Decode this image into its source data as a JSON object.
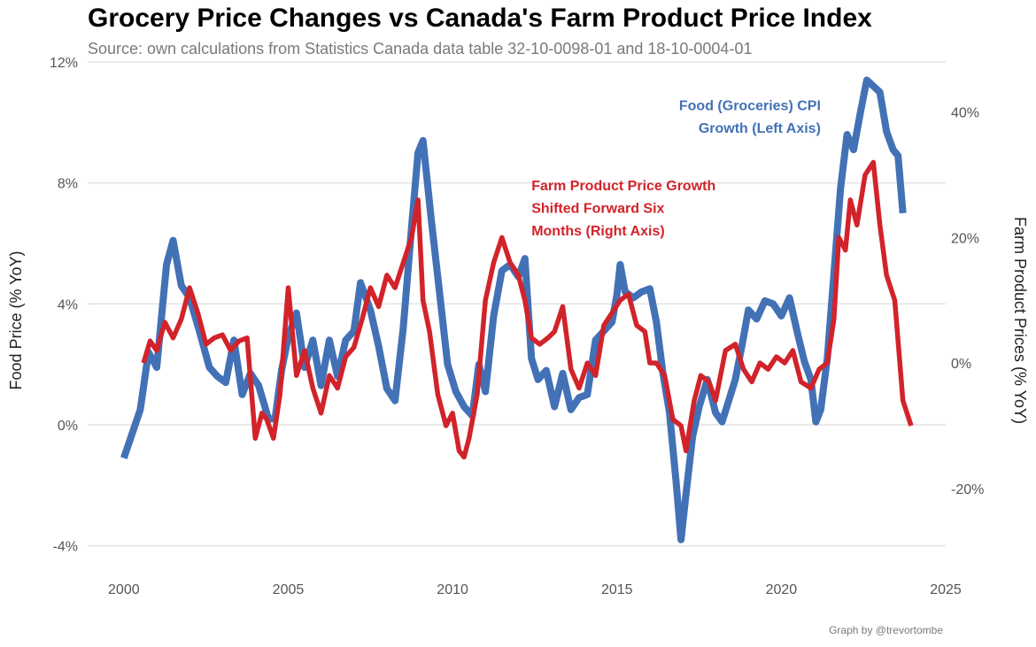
{
  "header": {
    "title": "Grocery Price Changes vs Canada's Farm Product Price Index",
    "subtitle": "Source: own calculations from Statistics Canada data table 32-10-0098-01 and 18-10-0004-01"
  },
  "footer": {
    "caption": "Graph by @trevortombe"
  },
  "chart_data": {
    "type": "line",
    "title": "Grocery Price Changes vs Canada's Farm Product Price Index",
    "subtitle": "Source: own calculations from Statistics Canada data table 32-10-0098-01 and 18-10-0004-01",
    "ylabel": "Food Price (% YoY)",
    "y2label": "Farm Product Prices (% YoY)",
    "xlim": [
      1998.9,
      2025
    ],
    "ylim": [
      -4.8,
      12
    ],
    "y2lim": [
      -33,
      48
    ],
    "x_ticks": [
      2000,
      2005,
      2010,
      2015,
      2020,
      2025
    ],
    "y_ticks": [
      -4,
      0,
      4,
      8,
      12
    ],
    "y_tick_labels": [
      "-4%",
      "0%",
      "4%",
      "8%",
      "12%"
    ],
    "y2_ticks": [
      -20,
      0,
      20,
      40
    ],
    "y2_tick_labels": [
      "-20%",
      "0%",
      "20%",
      "40%"
    ],
    "grid": true,
    "annotations": [
      {
        "lines": [
          "Food (Groceries) CPI",
          "Growth (Left Axis)"
        ],
        "color": "#4271b6",
        "x": 2021.2,
        "y": 10.4,
        "align": "end"
      },
      {
        "lines": [
          "Farm Product Price Growth",
          "Shifted Forward Six",
          "Months (Right Axis)"
        ],
        "color": "#d2232a",
        "x": 2012.4,
        "y": 7.75,
        "align": "start"
      }
    ],
    "series": [
      {
        "name": "Food (Groceries) CPI Growth (Left Axis)",
        "axis": "left",
        "color": "#4271b6",
        "x": [
          2000.0,
          2000.25,
          2000.5,
          2000.75,
          2001.0,
          2001.15,
          2001.3,
          2001.5,
          2001.75,
          2002.0,
          2002.3,
          2002.6,
          2002.85,
          2003.1,
          2003.35,
          2003.6,
          2003.85,
          2004.1,
          2004.4,
          2004.6,
          2004.8,
          2005.0,
          2005.25,
          2005.5,
          2005.75,
          2006.0,
          2006.25,
          2006.5,
          2006.75,
          2007.0,
          2007.2,
          2007.5,
          2007.75,
          2008.0,
          2008.25,
          2008.5,
          2008.75,
          2008.95,
          2009.1,
          2009.35,
          2009.6,
          2009.85,
          2010.1,
          2010.35,
          2010.6,
          2010.8,
          2011.0,
          2011.25,
          2011.5,
          2011.75,
          2012.0,
          2012.2,
          2012.4,
          2012.6,
          2012.85,
          2013.1,
          2013.35,
          2013.6,
          2013.85,
          2014.1,
          2014.35,
          2014.6,
          2014.85,
          2015.0,
          2015.1,
          2015.25,
          2015.5,
          2015.75,
          2016.0,
          2016.2,
          2016.4,
          2016.6,
          2016.8,
          2016.95,
          2017.1,
          2017.3,
          2017.5,
          2017.75,
          2018.0,
          2018.2,
          2018.4,
          2018.6,
          2018.8,
          2019.0,
          2019.25,
          2019.5,
          2019.75,
          2020.0,
          2020.25,
          2020.5,
          2020.7,
          2020.9,
          2021.05,
          2021.2,
          2021.4,
          2021.6,
          2021.8,
          2022.0,
          2022.2,
          2022.4,
          2022.6,
          2022.8,
          2023.0,
          2023.2,
          2023.4,
          2023.55,
          2023.7
        ],
        "values": [
          -1.1,
          -0.3,
          0.5,
          2.4,
          1.9,
          3.6,
          5.3,
          6.1,
          4.6,
          4.2,
          3.1,
          1.9,
          1.6,
          1.4,
          2.8,
          1.0,
          1.7,
          1.3,
          0.2,
          0.2,
          1.8,
          2.9,
          3.7,
          1.9,
          2.8,
          1.3,
          2.8,
          1.6,
          2.8,
          3.1,
          4.7,
          3.8,
          2.6,
          1.2,
          0.8,
          3.2,
          6.5,
          9.0,
          9.4,
          6.8,
          4.4,
          2.0,
          1.1,
          0.6,
          0.3,
          2.0,
          1.1,
          3.6,
          5.1,
          5.3,
          4.9,
          5.5,
          2.2,
          1.5,
          1.8,
          0.6,
          1.7,
          0.5,
          0.9,
          1.0,
          2.8,
          3.1,
          3.4,
          4.3,
          5.3,
          4.4,
          4.2,
          4.4,
          4.5,
          3.4,
          1.7,
          0.4,
          -1.9,
          -3.8,
          -2.3,
          -0.4,
          0.6,
          1.5,
          0.4,
          0.1,
          0.8,
          1.5,
          2.6,
          3.8,
          3.5,
          4.1,
          4.0,
          3.6,
          4.2,
          3.0,
          2.1,
          1.5,
          0.1,
          0.5,
          2.2,
          5.0,
          7.8,
          9.6,
          9.1,
          10.3,
          11.4,
          11.2,
          11.0,
          9.7,
          9.1,
          8.9,
          7.0
        ]
      },
      {
        "name": "Farm Product Price Growth Shifted Forward Six Months (Right Axis)",
        "axis": "right",
        "color": "#d2232a",
        "x": [
          2000.6,
          2000.8,
          2001.0,
          2001.25,
          2001.5,
          2001.75,
          2002.0,
          2002.25,
          2002.5,
          2002.75,
          2003.0,
          2003.25,
          2003.5,
          2003.75,
          2004.0,
          2004.2,
          2004.35,
          2004.55,
          2004.75,
          2005.0,
          2005.25,
          2005.5,
          2005.75,
          2006.0,
          2006.25,
          2006.5,
          2006.75,
          2007.0,
          2007.25,
          2007.5,
          2007.75,
          2008.0,
          2008.25,
          2008.5,
          2008.75,
          2008.95,
          2009.1,
          2009.3,
          2009.55,
          2009.8,
          2010.0,
          2010.2,
          2010.35,
          2010.5,
          2010.75,
          2011.0,
          2011.25,
          2011.5,
          2011.75,
          2012.0,
          2012.2,
          2012.4,
          2012.65,
          2012.9,
          2013.1,
          2013.35,
          2013.6,
          2013.85,
          2014.1,
          2014.35,
          2014.6,
          2014.85,
          2015.1,
          2015.35,
          2015.6,
          2015.85,
          2016.0,
          2016.2,
          2016.45,
          2016.7,
          2016.95,
          2017.1,
          2017.35,
          2017.55,
          2017.8,
          2018.0,
          2018.3,
          2018.6,
          2018.85,
          2019.1,
          2019.35,
          2019.6,
          2019.85,
          2020.1,
          2020.35,
          2020.6,
          2020.9,
          2021.15,
          2021.4,
          2021.6,
          2021.75,
          2021.95,
          2022.1,
          2022.3,
          2022.55,
          2022.8,
          2023.0,
          2023.2,
          2023.45,
          2023.7,
          2023.95
        ],
        "values": [
          0.0,
          3.5,
          2.0,
          6.5,
          4.0,
          7.0,
          12.0,
          8.0,
          3.0,
          4.0,
          4.5,
          2.0,
          3.5,
          4.0,
          -12.0,
          -8.0,
          -9.0,
          -12.0,
          -5.0,
          12.0,
          -2.0,
          2.0,
          -4.0,
          -8.0,
          -2.0,
          -4.0,
          1.0,
          2.5,
          7.0,
          12.0,
          9.0,
          14.0,
          12.0,
          16.0,
          20.0,
          26.0,
          10.0,
          5.0,
          -5.0,
          -10.0,
          -8.0,
          -14.0,
          -15.0,
          -12.0,
          -5.0,
          10.0,
          16.0,
          20.0,
          16.0,
          14.0,
          10.0,
          4.0,
          3.0,
          4.0,
          5.0,
          9.0,
          -1.0,
          -4.0,
          0.0,
          -2.0,
          6.0,
          8.0,
          10.0,
          11.0,
          6.0,
          5.0,
          0.0,
          0.0,
          -2.0,
          -9.0,
          -10.0,
          -14.0,
          -6.0,
          -2.0,
          -3.0,
          -6.0,
          2.0,
          3.0,
          -1.0,
          -3.0,
          0.0,
          -1.0,
          1.0,
          0.0,
          2.0,
          -3.0,
          -4.0,
          -1.0,
          0.0,
          7.0,
          20.0,
          18.0,
          26.0,
          22.0,
          30.0,
          32.0,
          22.0,
          14.0,
          10.0,
          -6.0,
          -10.0
        ]
      }
    ]
  }
}
